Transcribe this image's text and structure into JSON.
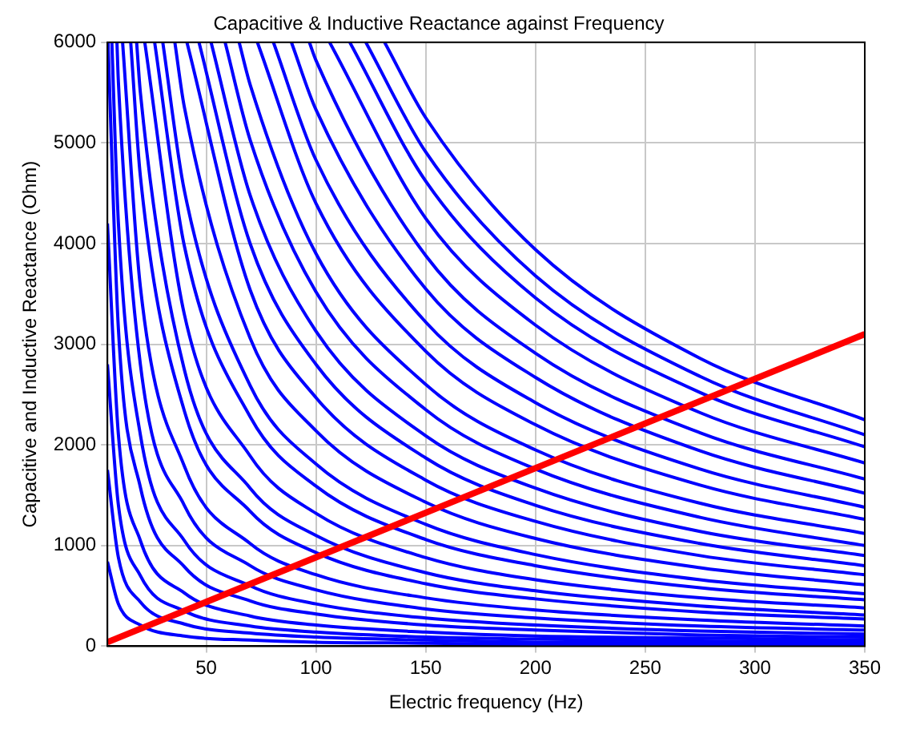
{
  "chart_data": {
    "type": "line",
    "title": "Capacitive & Inductive Reactance against Frequency",
    "xlabel": "Electric frequency (Hz)",
    "ylabel": "Capacitive and Inductive Reactance (Ohm)",
    "xlim": [
      5,
      350
    ],
    "ylim": [
      0,
      6000
    ],
    "xticks": [
      50,
      100,
      150,
      200,
      250,
      300,
      350
    ],
    "yticks": [
      0,
      1000,
      2000,
      3000,
      4000,
      5000,
      6000
    ],
    "grid": true,
    "legend": false,
    "marker": "none",
    "line_style": "solid",
    "series": [
      {
        "color": "#0000ff",
        "x": [
          131.25,
          150,
          200,
          275,
          350
        ],
        "values": [
          6000,
          5250,
          3940,
          2860,
          2250
        ]
      },
      {
        "color": "#0000ff",
        "x": [
          122.7,
          150,
          200,
          275,
          350
        ],
        "values": [
          6000,
          4910,
          3680,
          2680,
          2100
        ]
      },
      {
        "color": "#0000ff",
        "x": [
          115.4,
          150,
          200,
          275,
          350
        ],
        "values": [
          6000,
          4620,
          3460,
          2520,
          1980
        ]
      },
      {
        "color": "#0000ff",
        "x": [
          106.2,
          150,
          200,
          275,
          350
        ],
        "values": [
          6000,
          4250,
          3190,
          2320,
          1820
        ]
      },
      {
        "color": "#0000ff",
        "x": [
          97,
          100,
          150,
          200,
          275,
          350
        ],
        "values": [
          6000,
          5820,
          3880,
          2910,
          2120,
          1660
        ]
      },
      {
        "color": "#0000ff",
        "x": [
          88.8,
          100,
          150,
          200,
          275,
          350
        ],
        "values": [
          6000,
          5330,
          3550,
          2670,
          1940,
          1520
        ]
      },
      {
        "color": "#0000ff",
        "x": [
          80.6,
          100,
          150,
          200,
          275,
          350
        ],
        "values": [
          6000,
          4830,
          3220,
          2420,
          1760,
          1380
        ]
      },
      {
        "color": "#0000ff",
        "x": [
          73.3,
          100,
          150,
          200,
          275,
          350
        ],
        "values": [
          6000,
          4400,
          2930,
          2200,
          1600,
          1260
        ]
      },
      {
        "color": "#0000ff",
        "x": [
          65,
          70,
          100,
          150,
          200,
          275,
          350
        ],
        "values": [
          6000,
          5580,
          3900,
          2600,
          1950,
          1420,
          1120
        ]
      },
      {
        "color": "#0000ff",
        "x": [
          58.6,
          70,
          100,
          150,
          200,
          275,
          350
        ],
        "values": [
          6000,
          5030,
          3520,
          2350,
          1760,
          1280,
          1000
        ]
      },
      {
        "color": "#0000ff",
        "x": [
          52.2,
          70,
          100,
          150,
          200,
          275,
          350
        ],
        "values": [
          6000,
          4480,
          3130,
          2090,
          1570,
          1140,
          900
        ]
      },
      {
        "color": "#0000ff",
        "x": [
          46.7,
          70,
          100,
          150,
          200,
          275,
          350
        ],
        "values": [
          6000,
          4000,
          2800,
          1870,
          1400,
          1020,
          800
        ]
      },
      {
        "color": "#0000ff",
        "x": [
          41.2,
          70,
          100,
          150,
          200,
          275,
          350
        ],
        "values": [
          6000,
          3540,
          2470,
          1650,
          1240,
          900,
          710
        ]
      },
      {
        "color": "#0000ff",
        "x": [
          35.7,
          40,
          70,
          100,
          150,
          200,
          275,
          350
        ],
        "values": [
          6000,
          5360,
          3060,
          2140,
          1430,
          1070,
          780,
          610
        ]
      },
      {
        "color": "#0000ff",
        "x": [
          30.2,
          40,
          70,
          100,
          150,
          200,
          275,
          350
        ],
        "values": [
          6000,
          4530,
          2590,
          1810,
          1210,
          910,
          660,
          520
        ]
      },
      {
        "color": "#0000ff",
        "x": [
          26.5,
          40,
          70,
          100,
          150,
          200,
          275,
          350
        ],
        "values": [
          6000,
          3980,
          2280,
          1590,
          1060,
          800,
          580,
          460
        ]
      },
      {
        "color": "#0000ff",
        "x": [
          22,
          40,
          70,
          100,
          150,
          200,
          275,
          350
        ],
        "values": [
          6000,
          3300,
          1890,
          1320,
          880,
          660,
          480,
          380
        ]
      },
      {
        "color": "#0000ff",
        "x": [
          18.3,
          20,
          40,
          70,
          100,
          150,
          200,
          275,
          350
        ],
        "values": [
          6000,
          5500,
          2750,
          1570,
          1100,
          730,
          550,
          400,
          310
        ]
      },
      {
        "color": "#0000ff",
        "x": [
          15.6,
          20,
          40,
          70,
          100,
          150,
          200,
          275,
          350
        ],
        "values": [
          6000,
          4670,
          2340,
          1340,
          930,
          620,
          470,
          340,
          270
        ]
      },
      {
        "color": "#0000ff",
        "x": [
          11.9,
          20,
          40,
          70,
          100,
          150,
          200,
          275,
          350
        ],
        "values": [
          6000,
          3570,
          1790,
          1020,
          710,
          480,
          360,
          260,
          200
        ]
      },
      {
        "color": "#0000ff",
        "x": [
          9.33,
          10,
          20,
          40,
          70,
          100,
          150,
          200,
          275,
          350
        ],
        "values": [
          6000,
          5600,
          2800,
          1400,
          800,
          560,
          370,
          280,
          200,
          160
        ]
      },
      {
        "color": "#0000ff",
        "x": [
          7,
          10,
          20,
          40,
          70,
          100,
          150,
          200,
          275,
          350
        ],
        "values": [
          6000,
          4200,
          2100,
          1050,
          600,
          420,
          280,
          210,
          150,
          120
        ]
      },
      {
        "color": "#0000ff",
        "x": [
          5.25,
          10,
          20,
          40,
          70,
          100,
          150,
          200,
          275,
          350
        ],
        "values": [
          6000,
          3150,
          1580,
          790,
          450,
          320,
          210,
          160,
          110,
          90
        ]
      },
      {
        "color": "#0000ff",
        "x": [
          5,
          10,
          20,
          40,
          70,
          100,
          150,
          200,
          275,
          350
        ],
        "values": [
          4200,
          2100,
          1050,
          530,
          300,
          210,
          140,
          100,
          80,
          60
        ]
      },
      {
        "color": "#0000ff",
        "x": [
          5,
          10,
          20,
          40,
          70,
          100,
          150,
          200,
          275,
          350
        ],
        "values": [
          2800,
          1400,
          700,
          350,
          200,
          140,
          90,
          70,
          50,
          40
        ]
      },
      {
        "color": "#0000ff",
        "x": [
          5,
          10,
          20,
          40,
          70,
          100,
          150,
          200,
          275,
          350
        ],
        "values": [
          1750,
          880,
          440,
          220,
          130,
          90,
          60,
          40,
          30,
          30
        ]
      },
      {
        "color": "#0000ff",
        "x": [
          5,
          10,
          20,
          40,
          70,
          100,
          150,
          200,
          275,
          350
        ],
        "values": [
          840,
          420,
          210,
          100,
          60,
          40,
          30,
          20,
          20,
          10
        ]
      },
      {
        "color": "#ff0000",
        "x": [
          5,
          350
        ],
        "values": [
          40,
          3100
        ]
      }
    ]
  }
}
